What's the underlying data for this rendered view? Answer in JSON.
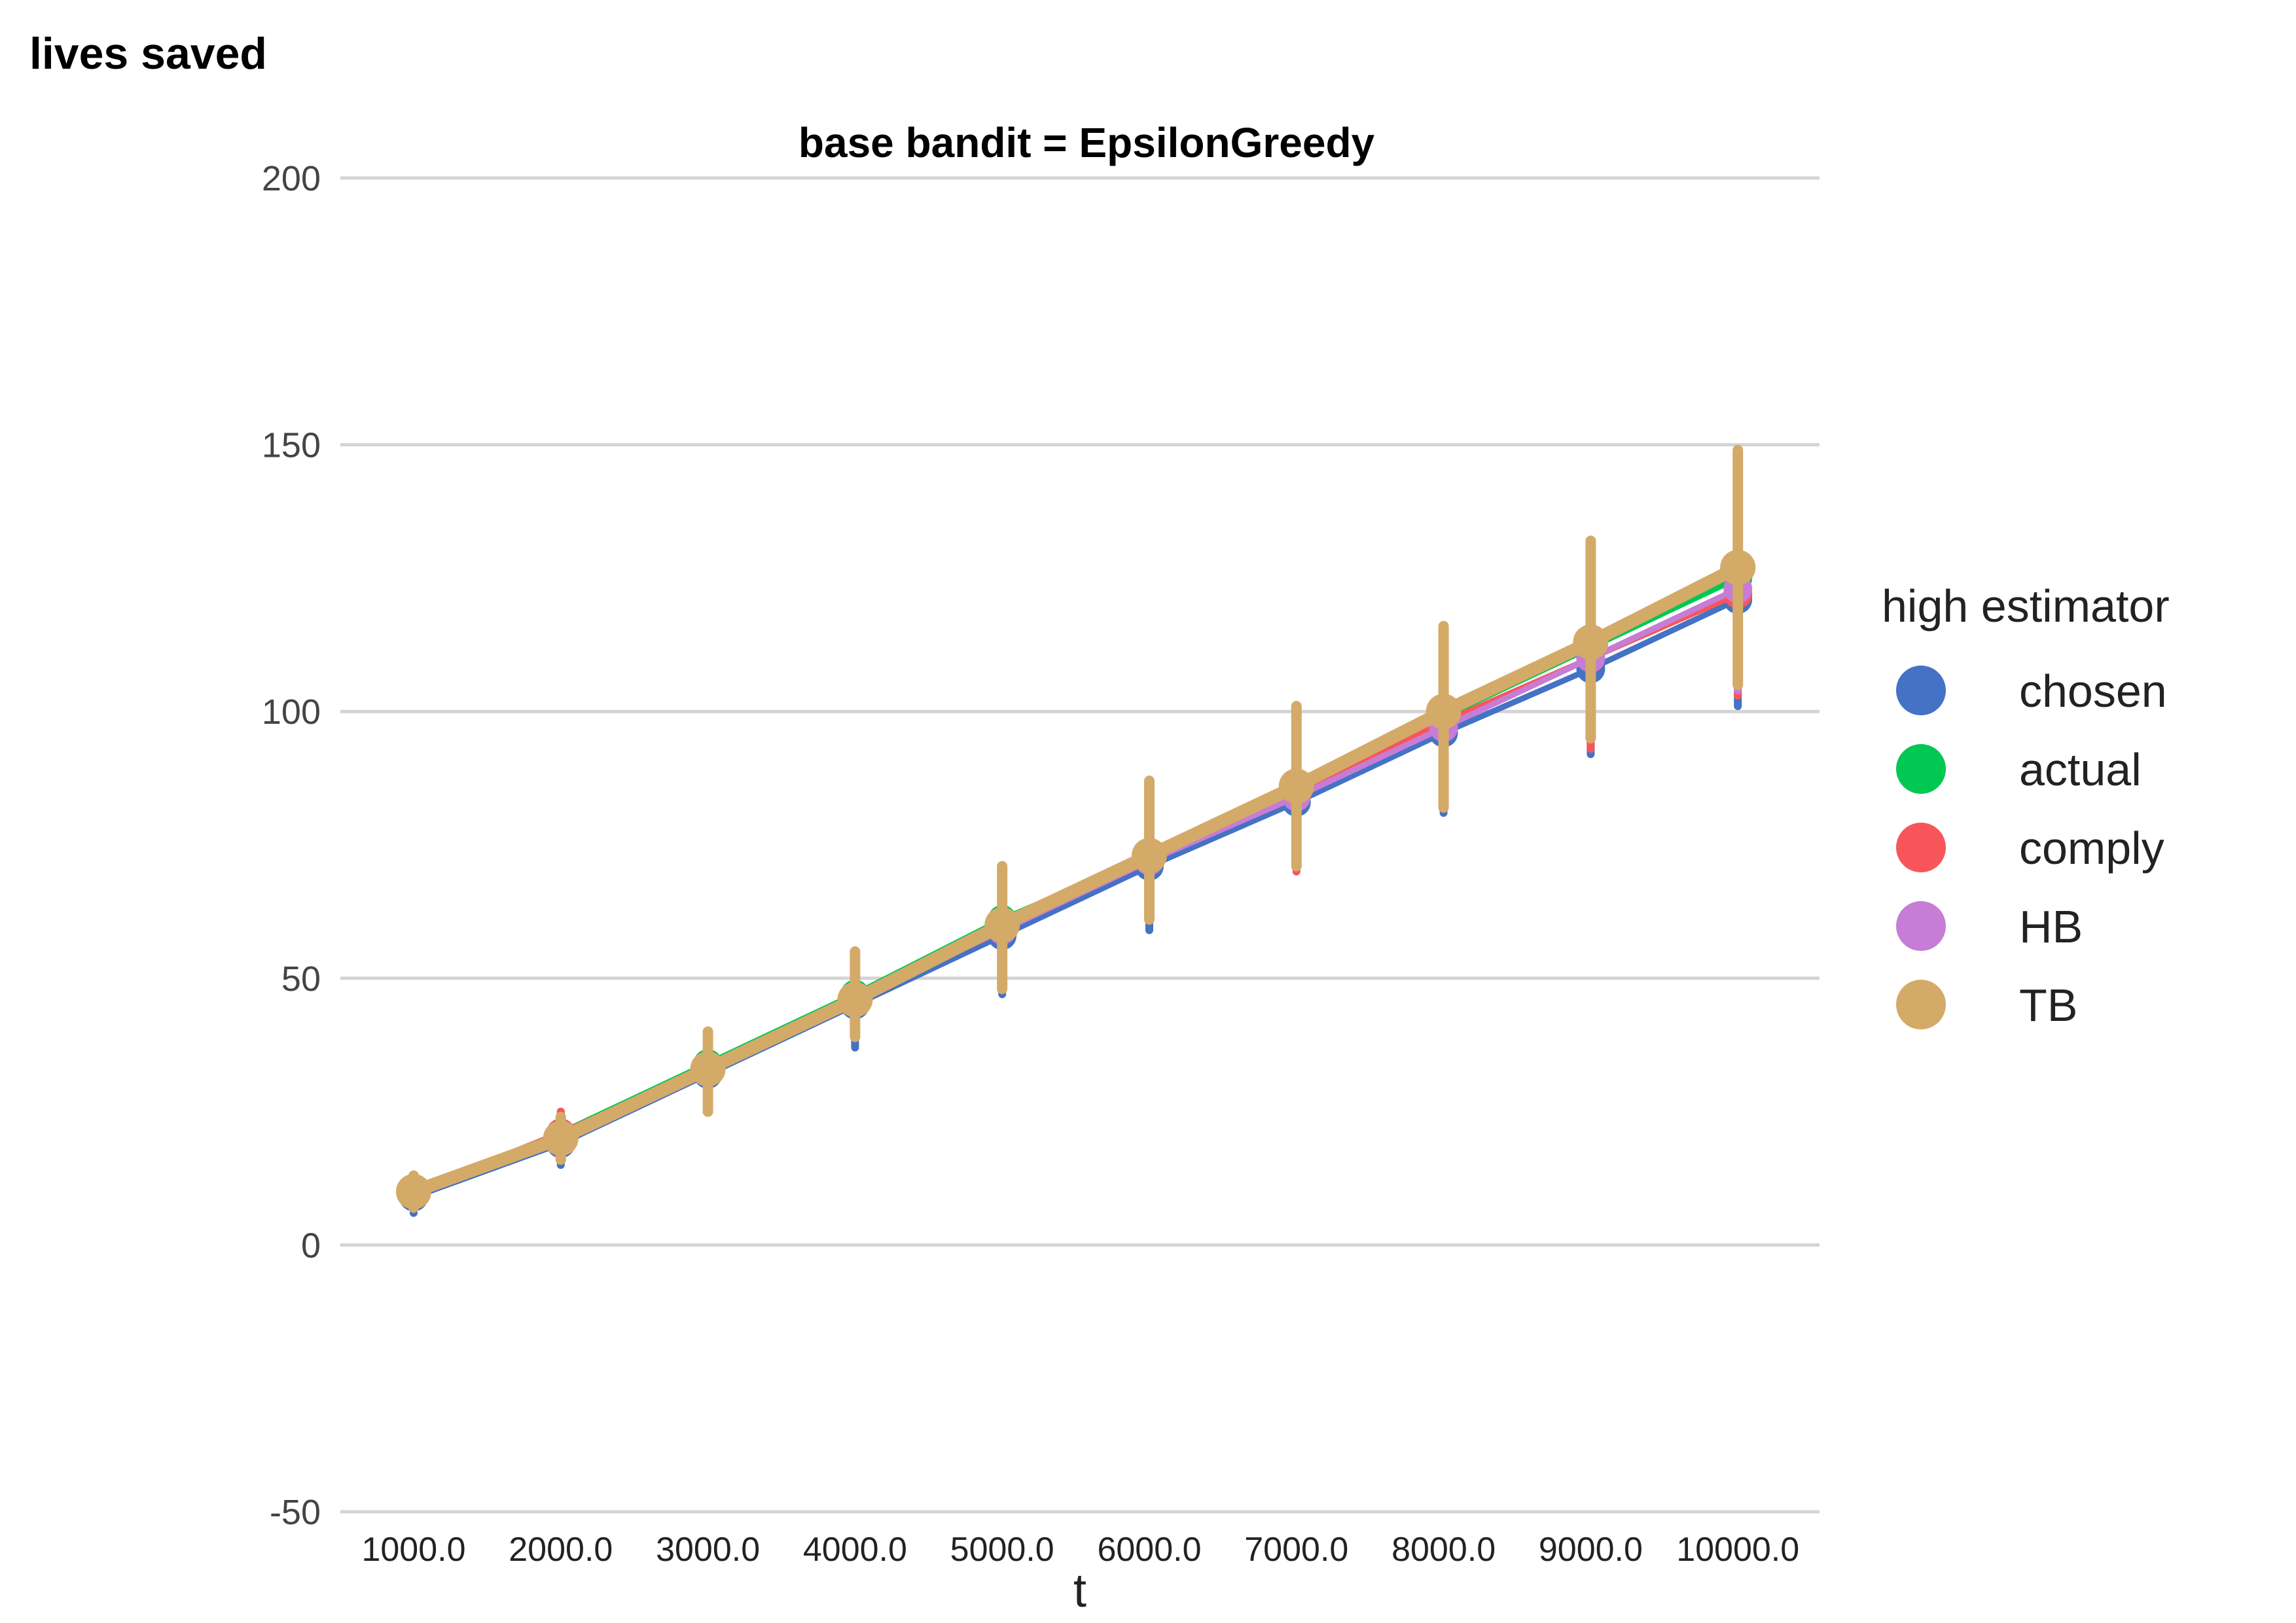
{
  "chart_data": {
    "type": "line",
    "title": "base bandit = EpsilonGreedy",
    "ylabel": "lives saved",
    "xlabel": "t",
    "ylim": [
      -50,
      200
    ],
    "yticks": [
      -50,
      0,
      50,
      100,
      150,
      200
    ],
    "x": [
      1000,
      2000,
      3000,
      4000,
      5000,
      6000,
      7000,
      8000,
      9000,
      10000
    ],
    "xtick_labels": [
      "1000.0",
      "2000.0",
      "3000.0",
      "4000.0",
      "5000.0",
      "6000.0",
      "7000.0",
      "8000.0",
      "9000.0",
      "10000.0"
    ],
    "grid": true,
    "legend": {
      "title": "high estimator",
      "placement": "right"
    },
    "series": [
      {
        "name": "chosen",
        "color": "#4472C4",
        "values": [
          9,
          19,
          32,
          45,
          58,
          71,
          83,
          96,
          108,
          121
        ],
        "lower": [
          6,
          15,
          27,
          37,
          47,
          59,
          71,
          81,
          92,
          101
        ],
        "upper": [
          12,
          23,
          37,
          53,
          68,
          83,
          97,
          112,
          126,
          142
        ]
      },
      {
        "name": "actual",
        "color": "#00C853",
        "values": [
          10,
          21,
          34,
          47,
          61,
          73,
          86,
          99,
          112,
          125
        ],
        "lower": [
          7,
          17,
          29,
          40,
          51,
          62,
          74,
          85,
          96,
          107
        ],
        "upper": [
          13,
          25,
          39,
          55,
          71,
          85,
          99,
          114,
          129,
          145
        ]
      },
      {
        "name": "comply",
        "color": "#F8555A",
        "values": [
          10,
          21,
          33,
          46,
          59,
          72,
          85,
          98,
          110,
          122
        ],
        "lower": [
          7,
          17,
          28,
          39,
          49,
          61,
          70,
          83,
          93,
          103
        ],
        "upper": [
          13,
          25,
          40,
          54,
          69,
          84,
          98,
          113,
          127,
          143
        ]
      },
      {
        "name": "HB",
        "color": "#C77CD6",
        "values": [
          10,
          20,
          33,
          46,
          59,
          72,
          84,
          97,
          110,
          123
        ],
        "lower": [
          7,
          16,
          28,
          39,
          49,
          61,
          72,
          84,
          95,
          104
        ],
        "upper": [
          13,
          24,
          38,
          53,
          69,
          84,
          98,
          113,
          128,
          144
        ]
      },
      {
        "name": "TB",
        "color": "#D4AA68",
        "values": [
          10,
          20,
          33,
          46,
          60,
          73,
          86,
          100,
          113,
          127
        ],
        "lower": [
          7,
          16,
          25,
          39,
          48,
          61,
          71,
          82,
          95,
          105
        ],
        "upper": [
          13,
          24,
          40,
          55,
          71,
          87,
          101,
          116,
          132,
          149
        ]
      }
    ]
  }
}
